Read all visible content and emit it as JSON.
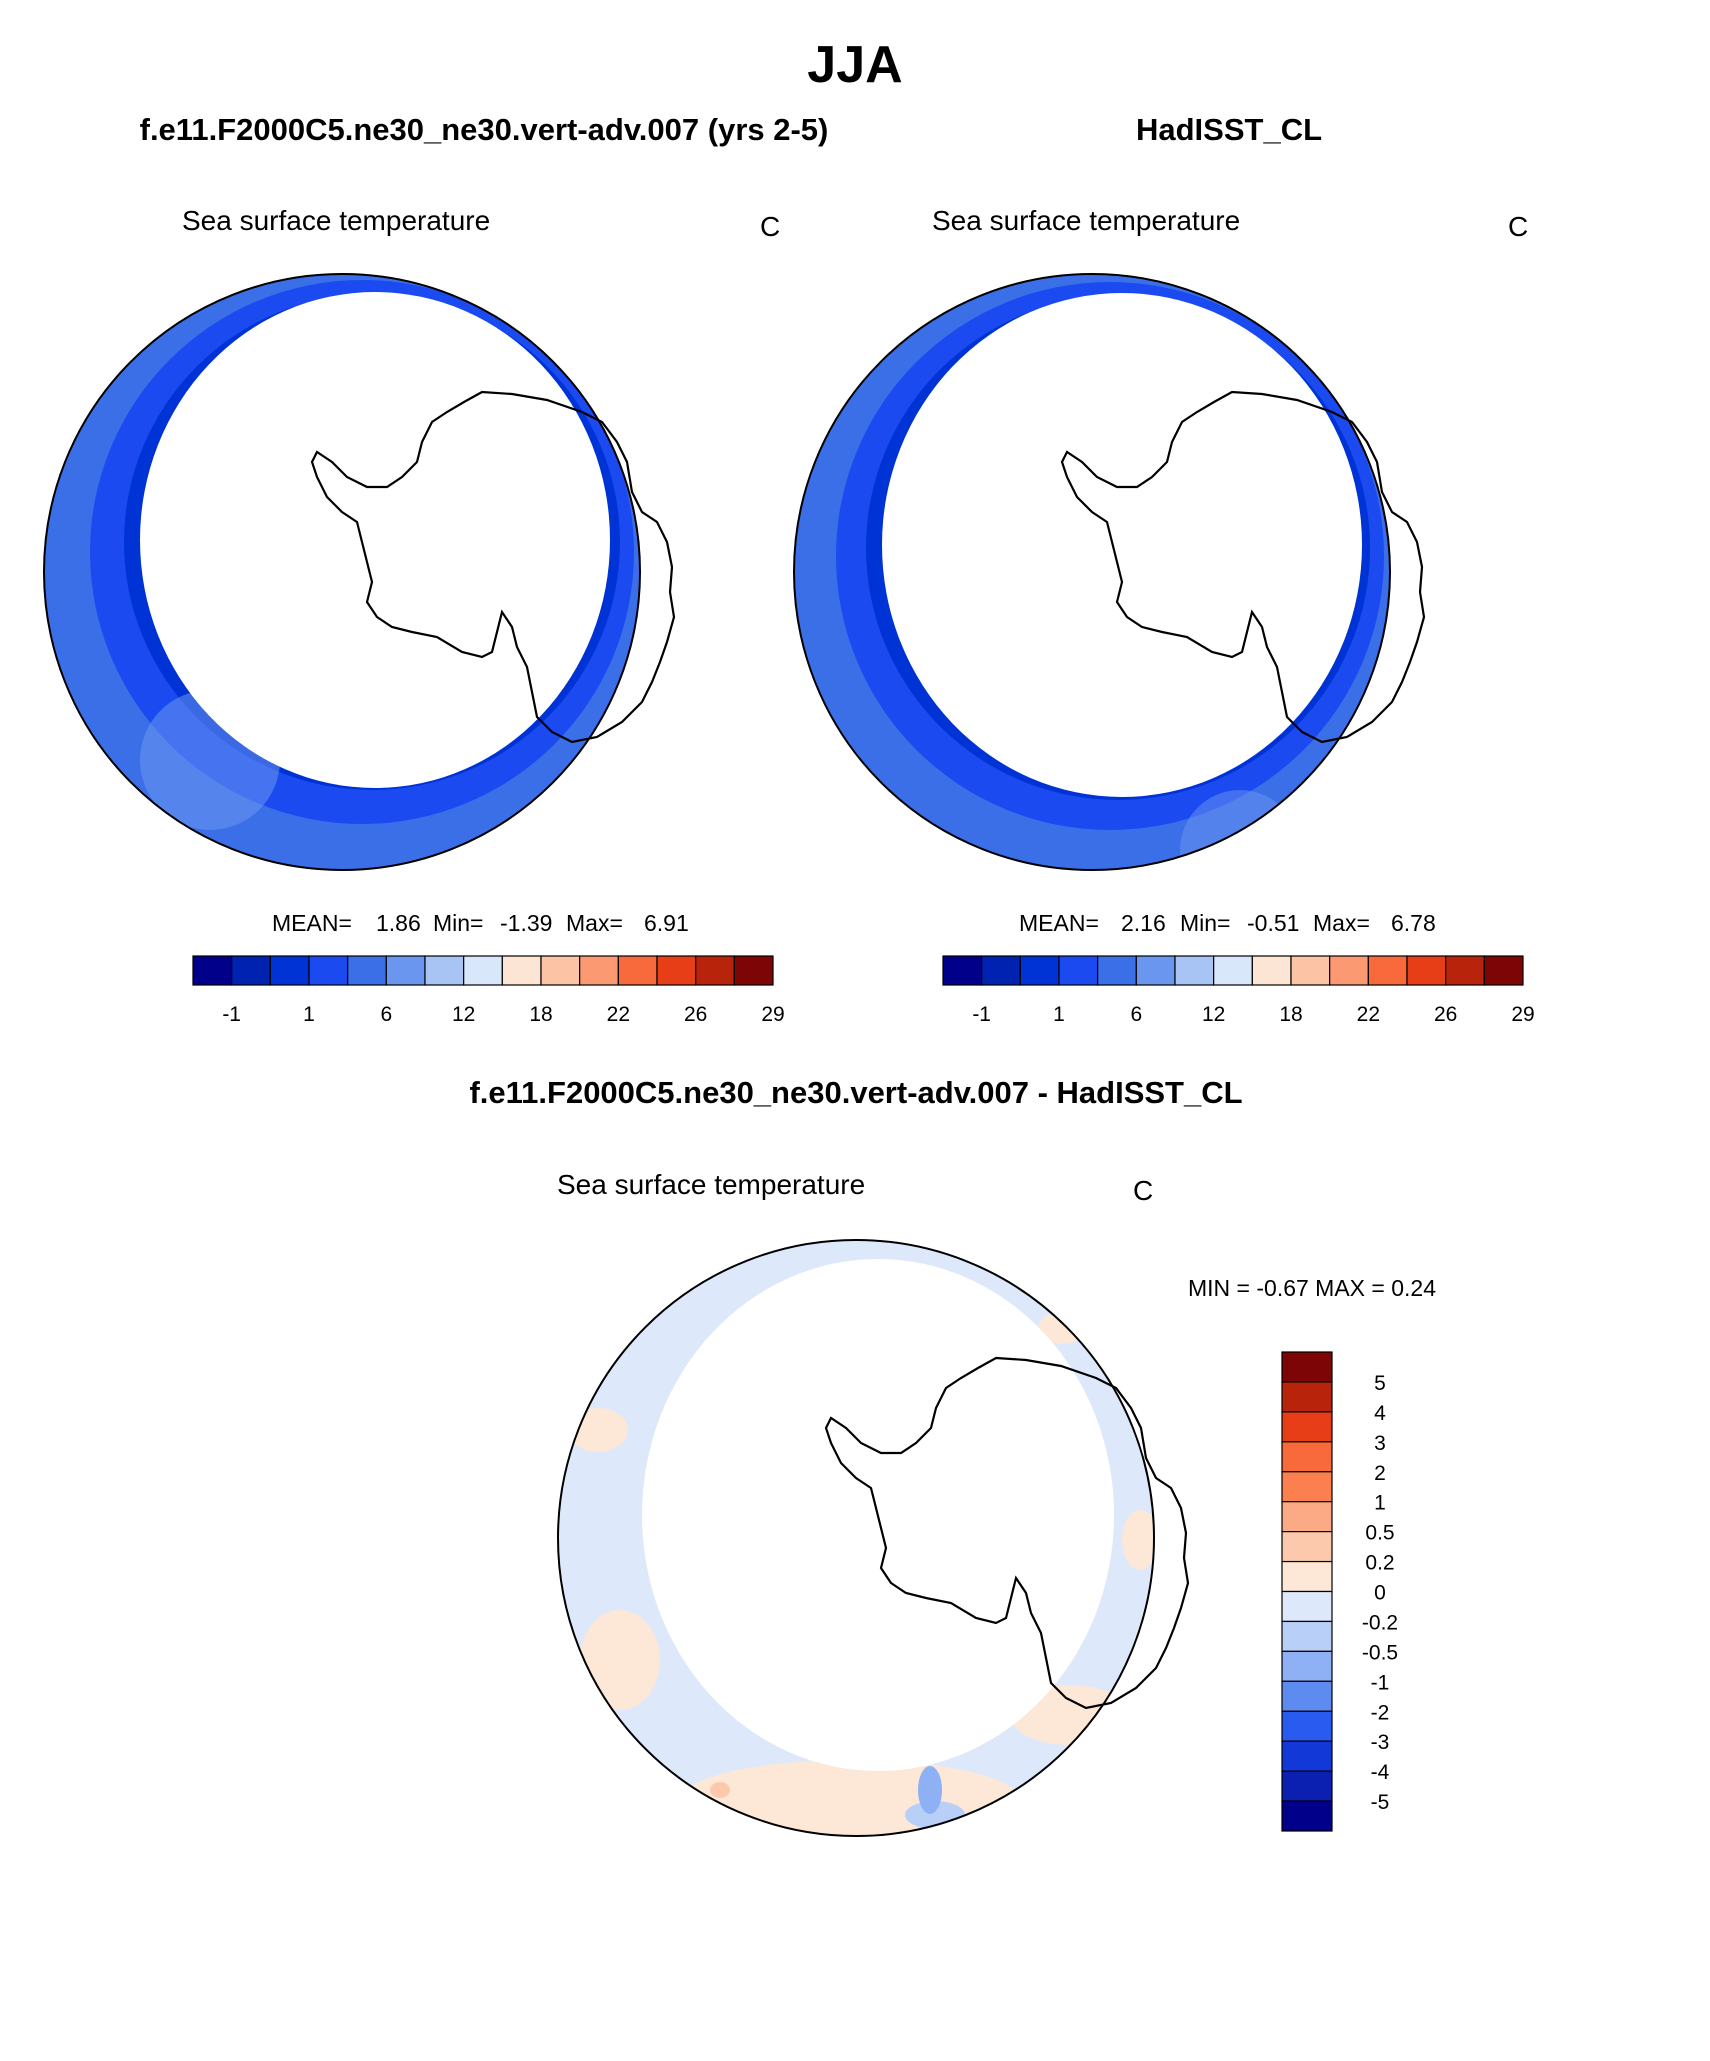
{
  "page": {
    "season_title": "JJA"
  },
  "panels": [
    {
      "case_title": "f.e11.F2000C5.ne30_ne30.vert-adv.007 (yrs 2-5)",
      "variable": "Sea surface temperature",
      "units": "C",
      "stats": {
        "mean_label": "MEAN=",
        "mean": "1.86",
        "min_label": "Min=",
        "min": "-1.39",
        "max_label": "Max=",
        "max": "6.91"
      }
    },
    {
      "case_title": "HadISST_CL",
      "variable": "Sea surface temperature",
      "units": "C",
      "stats": {
        "mean_label": "MEAN=",
        "mean": "2.16",
        "min_label": "Min=",
        "min": "-0.51",
        "max_label": "Max=",
        "max": "6.78"
      }
    },
    {
      "case_title": "f.e11.F2000C5.ne30_ne30.vert-adv.007 - HadISST_CL",
      "variable": "Sea surface temperature",
      "units": "C",
      "stats_text": "MIN =  -0.67 MAX =   0.24"
    }
  ],
  "chart_data": [
    {
      "type": "heatmap",
      "title": "Sea surface temperature",
      "projection": "south polar stereographic",
      "colorbar": {
        "orientation": "horizontal",
        "levels": [
          -1,
          1,
          6,
          12,
          18,
          22,
          26,
          29
        ],
        "level_labels": [
          "-1",
          "1",
          "6",
          "12",
          "18",
          "22",
          "26",
          "29"
        ],
        "colors": [
          "#00008a",
          "#0022b0",
          "#0033d6",
          "#1a4af0",
          "#3a6fe8",
          "#6b96f0",
          "#a8c4f5",
          "#d8e8fa",
          "#fde5d5",
          "#fcc3a5",
          "#fb9a72",
          "#f86a3c",
          "#e83e17",
          "#b8230c",
          "#7d0505"
        ]
      },
      "stats": {
        "mean": 1.86,
        "min": -1.39,
        "max": 6.91
      }
    },
    {
      "type": "heatmap",
      "title": "Sea surface temperature",
      "projection": "south polar stereographic",
      "colorbar": {
        "orientation": "horizontal",
        "levels": [
          -1,
          1,
          6,
          12,
          18,
          22,
          26,
          29
        ],
        "level_labels": [
          "-1",
          "1",
          "6",
          "12",
          "18",
          "22",
          "26",
          "29"
        ],
        "colors": [
          "#00008a",
          "#0022b0",
          "#0033d6",
          "#1a4af0",
          "#3a6fe8",
          "#6b96f0",
          "#a8c4f5",
          "#d8e8fa",
          "#fde5d5",
          "#fcc3a5",
          "#fb9a72",
          "#f86a3c",
          "#e83e17",
          "#b8230c",
          "#7d0505"
        ]
      },
      "stats": {
        "mean": 2.16,
        "min": -0.51,
        "max": 6.78
      }
    },
    {
      "type": "heatmap",
      "title": "Sea surface temperature",
      "projection": "south polar stereographic",
      "colorbar": {
        "orientation": "vertical",
        "level_labels": [
          "5",
          "4",
          "3",
          "2",
          "1",
          "0.5",
          "0.2",
          "0",
          "-0.2",
          "-0.5",
          "-1",
          "-2",
          "-3",
          "-4",
          "-5"
        ],
        "colors": [
          "#7d0505",
          "#b8230c",
          "#e83e17",
          "#f86a3c",
          "#fb7f4f",
          "#fcaa85",
          "#fcc9ac",
          "#fde7d6",
          "#dde9fb",
          "#b8cff7",
          "#8eb0f4",
          "#5d8bef",
          "#2a5bf0",
          "#1238d8",
          "#0b1fb0",
          "#00008a"
        ]
      },
      "stats": {
        "min": -0.67,
        "max": 0.24
      }
    }
  ]
}
